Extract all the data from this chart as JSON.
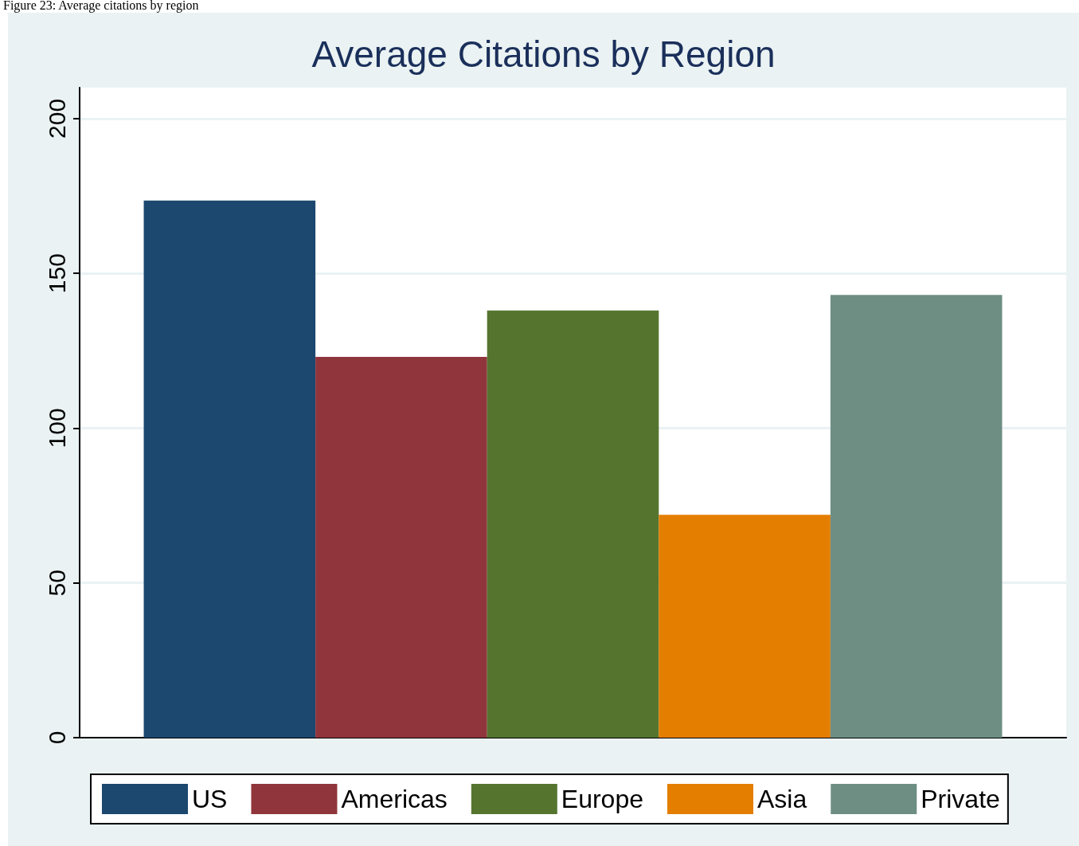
{
  "chart_data": {
    "type": "bar",
    "title": "Average Citations by Region",
    "annotations": [
      "Figure 23: Average citations by region"
    ],
    "categories": [
      null
    ],
    "series": [
      {
        "name": "US",
        "color": "#1c476e",
        "values": [
          173.5
        ]
      },
      {
        "name": "Americas",
        "color": "#90353b",
        "values": [
          123
        ]
      },
      {
        "name": "Europe",
        "color": "#55752f",
        "values": [
          138
        ]
      },
      {
        "name": "Asia",
        "color": "#e37e00",
        "values": [
          72
        ]
      },
      {
        "name": "Private",
        "color": "#6e8e84",
        "values": [
          143
        ]
      }
    ],
    "ylim": [
      0,
      210
    ],
    "yticks": [
      0,
      50,
      100,
      150,
      200
    ],
    "grid": "y",
    "legend": "bottom"
  }
}
